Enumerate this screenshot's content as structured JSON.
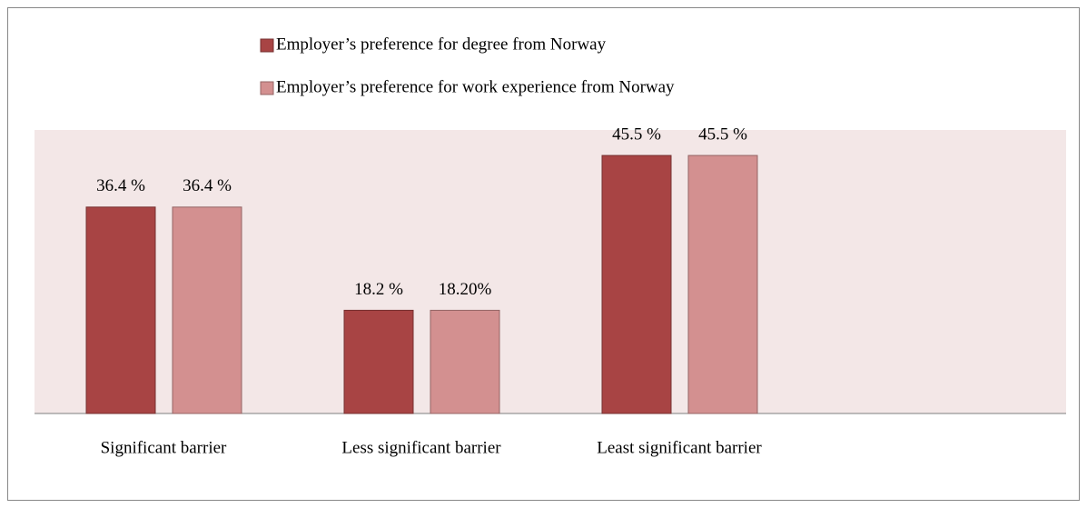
{
  "chart_data": {
    "type": "bar",
    "categories": [
      "Significant barrier",
      "Less significant barrier",
      "Least significant barrier"
    ],
    "series": [
      {
        "name": "Employer’s preference for degree from Norway",
        "color": "#a84444",
        "values": [
          36.4,
          18.2,
          45.5
        ],
        "value_labels": [
          "36.4 %",
          "18.2 %",
          "45.5 %"
        ]
      },
      {
        "name": "Employer’s preference for work experience from Norway",
        "color": "#d39090",
        "values": [
          36.4,
          18.2,
          45.5
        ],
        "value_labels": [
          "36.4 %",
          "18.20%",
          "45.5 %"
        ]
      }
    ],
    "ylim": [
      0,
      50
    ],
    "legend": "top"
  }
}
